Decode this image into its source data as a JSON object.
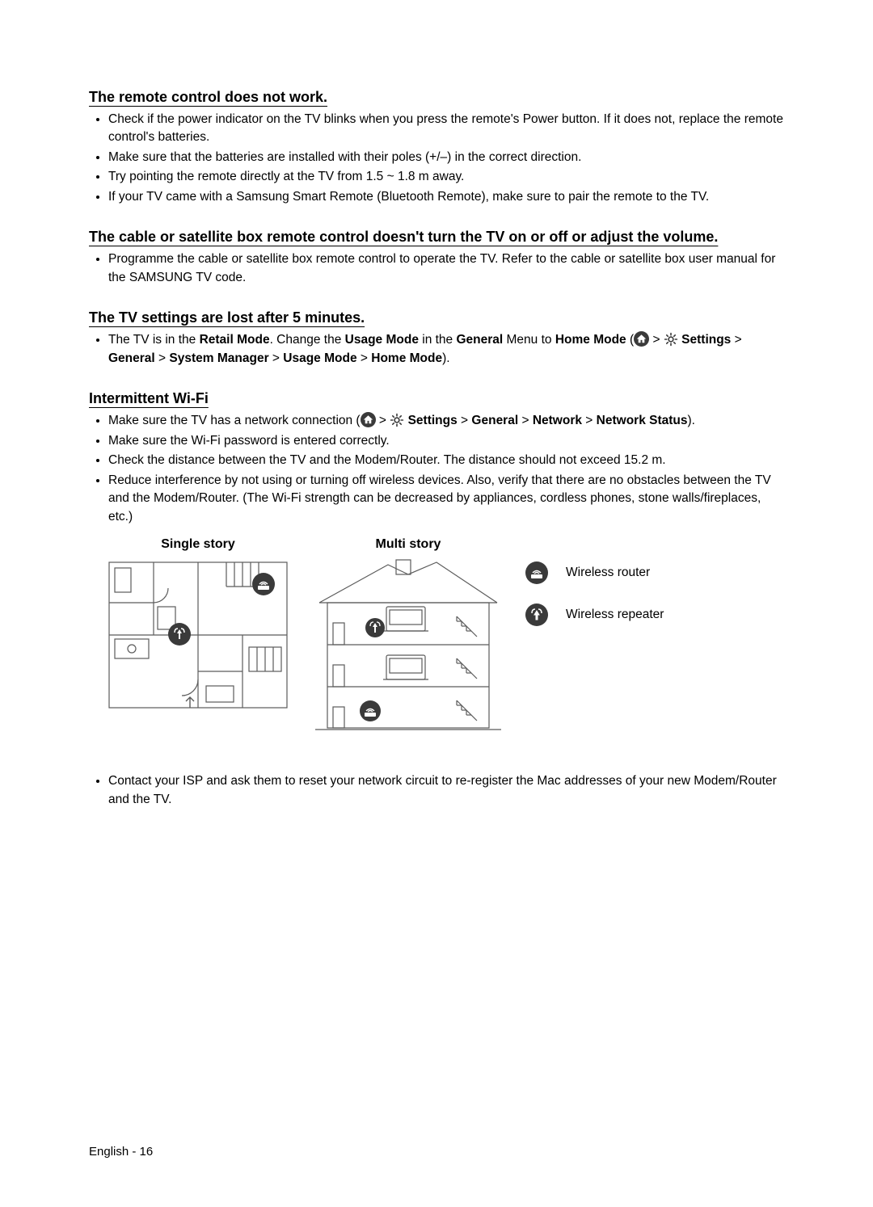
{
  "footer": {
    "text": "English - 16"
  },
  "colors": {
    "text": "#000000",
    "bg": "#ffffff",
    "icon_bg": "#3a3a3a",
    "icon_fg": "#ffffff",
    "diagram_stroke": "#5b5b5b"
  },
  "sections": [
    {
      "title": "The remote control does not work.",
      "bullets": [
        {
          "runs": [
            {
              "t": "Check if the power indicator on the TV blinks when you press the remote's Power button. If it does not, replace the remote control's batteries."
            }
          ]
        },
        {
          "runs": [
            {
              "t": "Make sure that the batteries are installed with their poles (+/–) in the correct direction."
            }
          ]
        },
        {
          "runs": [
            {
              "t": "Try pointing the remote directly at the TV from 1.5 ~ 1.8 m away."
            }
          ]
        },
        {
          "runs": [
            {
              "t": "If your TV came with a Samsung Smart Remote (Bluetooth Remote), make sure to pair the remote to the TV."
            }
          ]
        }
      ]
    },
    {
      "title": "The cable or satellite box remote control doesn't turn the TV on or off or adjust the volume.",
      "bullets": [
        {
          "runs": [
            {
              "t": "Programme the cable or satellite box remote control to operate the TV. Refer to the cable or satellite box user manual for the SAMSUNG TV code."
            }
          ]
        }
      ]
    },
    {
      "title": "The TV settings are lost after 5 minutes.",
      "bullets": [
        {
          "runs": [
            {
              "t": "The TV is in the "
            },
            {
              "t": "Retail Mode",
              "bold": true
            },
            {
              "t": ". Change the "
            },
            {
              "t": "Usage Mode",
              "bold": true
            },
            {
              "t": " in the "
            },
            {
              "t": "General",
              "bold": true
            },
            {
              "t": " Menu to "
            },
            {
              "t": "Home Mode",
              "bold": true
            },
            {
              "t": " ("
            },
            {
              "icon": "home"
            },
            {
              "t": " ",
              "sep": true
            },
            {
              "t": ">",
              "sep": true
            },
            {
              "t": " "
            },
            {
              "icon": "gear"
            },
            {
              "t": " "
            },
            {
              "t": "Settings",
              "bold": true
            },
            {
              "t": " > "
            },
            {
              "t": "General",
              "bold": true
            },
            {
              "t": " > "
            },
            {
              "t": "System Manager",
              "bold": true
            },
            {
              "t": " > "
            },
            {
              "t": "Usage Mode",
              "bold": true
            },
            {
              "t": " > "
            },
            {
              "t": "Home Mode",
              "bold": true
            },
            {
              "t": ")."
            }
          ]
        }
      ]
    },
    {
      "title": "Intermittent Wi-Fi",
      "bullets": [
        {
          "runs": [
            {
              "t": "Make sure the TV has a network connection ("
            },
            {
              "icon": "home"
            },
            {
              "t": " > "
            },
            {
              "icon": "gear"
            },
            {
              "t": " "
            },
            {
              "t": "Settings",
              "bold": true
            },
            {
              "t": " > "
            },
            {
              "t": "General",
              "bold": true
            },
            {
              "t": " > "
            },
            {
              "t": "Network",
              "bold": true
            },
            {
              "t": " > "
            },
            {
              "t": "Network Status",
              "bold": true
            },
            {
              "t": ")."
            }
          ]
        },
        {
          "runs": [
            {
              "t": "Make sure the Wi-Fi password is entered correctly."
            }
          ]
        },
        {
          "runs": [
            {
              "t": "Check the distance between the TV and the Modem/Router. The distance should not exceed 15.2 m."
            }
          ]
        },
        {
          "runs": [
            {
              "t": "Reduce interference by not using or turning off wireless devices. Also, verify that there are no obstacles between the TV and the Modem/Router. (The Wi-Fi strength can be decreased by appliances, cordless phones, stone walls/fireplaces, etc.)"
            }
          ]
        }
      ],
      "diagram": {
        "single_label": "Single story",
        "multi_label": "Multi story",
        "legend": [
          {
            "icon": "router",
            "label": "Wireless router"
          },
          {
            "icon": "repeater",
            "label": "Wireless repeater"
          }
        ]
      },
      "bullets_after": [
        {
          "runs": [
            {
              "t": "Contact your ISP and ask them to reset your network circuit to re-register the Mac addresses of your new Modem/Router and the TV."
            }
          ]
        }
      ]
    }
  ]
}
